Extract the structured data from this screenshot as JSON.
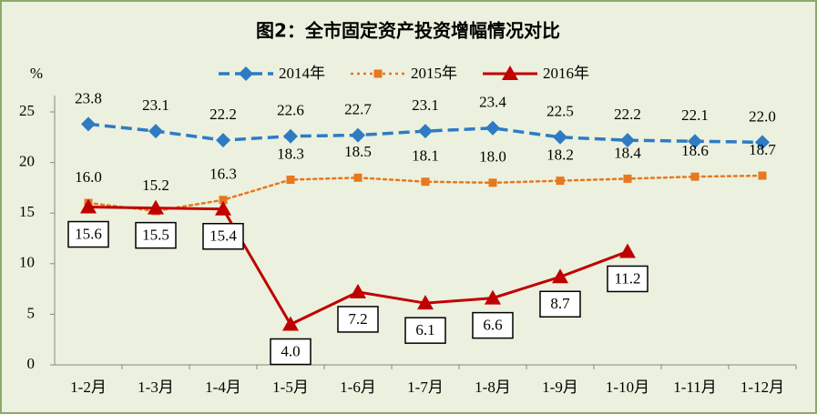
{
  "chart_data": {
    "type": "line",
    "title": "图2：全市固定资产投资增幅情况对比",
    "y_label": "%",
    "categories": [
      "1-2月",
      "1-3月",
      "1-4月",
      "1-5月",
      "1-6月",
      "1-7月",
      "1-8月",
      "1-9月",
      "1-10月",
      "1-11月",
      "1-12月"
    ],
    "series": [
      {
        "name": "2014年",
        "color": "#2E7BC4",
        "dash": "dashed",
        "marker": "diamond",
        "values": [
          23.8,
          23.1,
          22.2,
          22.6,
          22.7,
          23.1,
          23.4,
          22.5,
          22.2,
          22.1,
          22.0
        ],
        "value_labels": [
          "23.8",
          "23.1",
          "22.2",
          "22.6",
          "22.7",
          "23.1",
          "23.4",
          "22.5",
          "22.2",
          "22.1",
          "22.0"
        ]
      },
      {
        "name": "2015年",
        "color": "#E8771E",
        "dash": "dotted",
        "marker": "square",
        "values": [
          16.0,
          15.2,
          16.3,
          18.3,
          18.5,
          18.1,
          18.0,
          18.2,
          18.4,
          18.6,
          18.7
        ],
        "value_labels": [
          "16.0",
          "15.2",
          "16.3",
          "18.3",
          "18.5",
          "18.1",
          "18.0",
          "18.2",
          "18.4",
          "18.6",
          "18.7"
        ]
      },
      {
        "name": "2016年",
        "color": "#C00000",
        "dash": "solid",
        "marker": "triangle",
        "values": [
          15.6,
          15.5,
          15.4,
          4.0,
          7.2,
          6.1,
          6.6,
          8.7,
          11.2,
          null,
          null
        ],
        "value_labels": [
          "15.6",
          "15.5",
          "15.4",
          "4.0",
          "7.2",
          "6.1",
          "6.6",
          "8.7",
          "11.2",
          null,
          null
        ]
      }
    ],
    "ylim": [
      0,
      25
    ],
    "yticks": [
      0,
      5,
      10,
      15,
      20,
      25
    ],
    "grid": false
  }
}
